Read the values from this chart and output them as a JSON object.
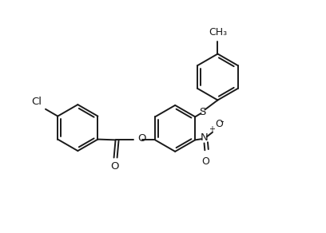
{
  "bg_color": "#ffffff",
  "line_color": "#1a1a1a",
  "lw": 1.4,
  "fs": 9.5,
  "figsize": [
    4.08,
    2.92
  ],
  "dpi": 100,
  "xlim": [
    -0.5,
    9.5
  ],
  "ylim": [
    0.0,
    7.0
  ],
  "r": 0.72
}
